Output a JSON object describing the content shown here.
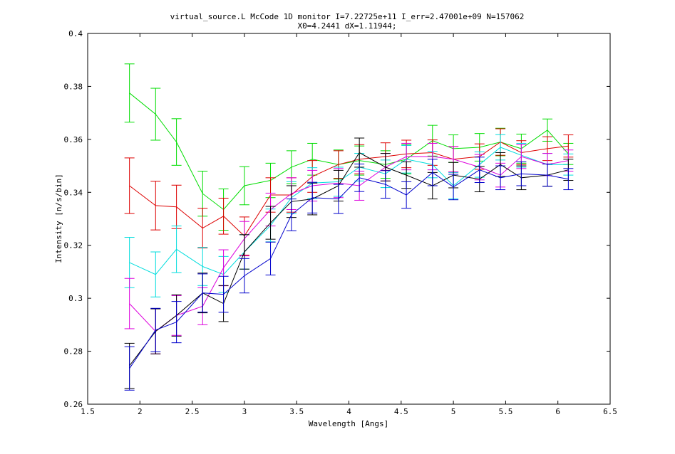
{
  "chart_data": {
    "type": "line",
    "title": "virtual_source.L McCode 1D monitor I=7.22725e+11 I_err=2.47001e+09 N=157062",
    "subtitle": "X0=4.2441 dX=1.11944;",
    "xlabel": "Wavelength [Angs]",
    "ylabel": "Intensity [n/s/bin]",
    "xlim": [
      1.5,
      6.5
    ],
    "ylim": [
      0.26,
      0.4
    ],
    "xticks": [
      1.5,
      2,
      2.5,
      3,
      3.5,
      4,
      4.5,
      5,
      5.5,
      6,
      6.5
    ],
    "xtick_labels": [
      "1.5",
      "2",
      "2.5",
      "3",
      "3.5",
      "4",
      "4.5",
      "5",
      "5.5",
      "6",
      "6.5"
    ],
    "yticks": [
      0.26,
      0.28,
      0.3,
      0.32,
      0.34,
      0.36,
      0.38,
      0.4
    ],
    "ytick_labels": [
      "0.26",
      "0.28",
      "0.3",
      "0.32",
      "0.34",
      "0.36",
      "0.38",
      "0.4"
    ],
    "grid": false,
    "legend": "none",
    "x": [
      1.9,
      2.15,
      2.35,
      2.6,
      2.8,
      3.0,
      3.25,
      3.45,
      3.65,
      3.9,
      4.1,
      4.35,
      4.55,
      4.8,
      5.0,
      5.25,
      5.45,
      5.65,
      5.9,
      6.1
    ],
    "series": [
      {
        "color": "#00dd00",
        "values": [
          0.3775,
          0.3695,
          0.359,
          0.3395,
          0.3335,
          0.3425,
          0.3445,
          0.3495,
          0.3525,
          0.3505,
          0.352,
          0.3505,
          0.3525,
          0.3595,
          0.3565,
          0.357,
          0.359,
          0.3565,
          0.3635,
          0.3545
        ],
        "errors": [
          0.011,
          0.0098,
          0.0088,
          0.0085,
          0.0078,
          0.0072,
          0.0065,
          0.0062,
          0.006,
          0.0055,
          0.0055,
          0.0052,
          0.0055,
          0.0058,
          0.0052,
          0.0052,
          0.0052,
          0.0055,
          0.0042,
          0.004
        ]
      },
      {
        "color": "#dd0000",
        "values": [
          0.3425,
          0.335,
          0.3345,
          0.3265,
          0.331,
          0.3235,
          0.339,
          0.339,
          0.346,
          0.3505,
          0.3525,
          0.3535,
          0.3545,
          0.355,
          0.3525,
          0.3535,
          0.359,
          0.355,
          0.3565,
          0.3575
        ],
        "errors": [
          0.0105,
          0.0092,
          0.0082,
          0.0075,
          0.0068,
          0.0072,
          0.0065,
          0.0065,
          0.006,
          0.0052,
          0.0055,
          0.0052,
          0.0052,
          0.0048,
          0.0048,
          0.0048,
          0.005,
          0.0045,
          0.0045,
          0.0042
        ]
      },
      {
        "color": "#00dddd",
        "values": [
          0.3135,
          0.309,
          0.3185,
          0.312,
          0.309,
          0.3175,
          0.3275,
          0.338,
          0.3435,
          0.344,
          0.3495,
          0.347,
          0.3525,
          0.3505,
          0.3425,
          0.3505,
          0.357,
          0.354,
          0.3505,
          0.3505
        ],
        "errors": [
          0.0095,
          0.0085,
          0.0088,
          0.0072,
          0.0068,
          0.0065,
          0.0062,
          0.006,
          0.0058,
          0.0055,
          0.0052,
          0.0052,
          0.0052,
          0.005,
          0.005,
          0.0048,
          0.0048,
          0.0045,
          0.0042,
          0.004
        ]
      },
      {
        "color": "#dd00dd",
        "values": [
          0.298,
          0.2875,
          0.2935,
          0.297,
          0.3115,
          0.3225,
          0.3335,
          0.3395,
          0.3425,
          0.3435,
          0.3425,
          0.3495,
          0.3535,
          0.3535,
          0.3525,
          0.3495,
          0.3465,
          0.3535,
          0.3505,
          0.352
        ],
        "errors": [
          0.0095,
          0.0085,
          0.0075,
          0.007,
          0.0068,
          0.0065,
          0.0062,
          0.006,
          0.0058,
          0.0055,
          0.0055,
          0.0052,
          0.005,
          0.005,
          0.0048,
          0.0048,
          0.0045,
          0.0045,
          0.0042,
          0.004
        ]
      },
      {
        "color": "#000000",
        "values": [
          0.2745,
          0.2875,
          0.2935,
          0.302,
          0.298,
          0.3175,
          0.3285,
          0.3365,
          0.3375,
          0.3425,
          0.355,
          0.3495,
          0.3465,
          0.3425,
          0.3465,
          0.345,
          0.3505,
          0.3455,
          0.3465,
          0.3485
        ],
        "errors": [
          0.0085,
          0.0085,
          0.0078,
          0.0075,
          0.0068,
          0.0065,
          0.0062,
          0.006,
          0.006,
          0.0058,
          0.0055,
          0.0052,
          0.005,
          0.005,
          0.0048,
          0.0048,
          0.0045,
          0.0045,
          0.0042,
          0.004
        ]
      },
      {
        "color": "#0000cc",
        "values": [
          0.2735,
          0.288,
          0.291,
          0.302,
          0.3015,
          0.3085,
          0.315,
          0.3315,
          0.338,
          0.3375,
          0.3455,
          0.343,
          0.339,
          0.3475,
          0.342,
          0.3485,
          0.3455,
          0.347,
          0.3465,
          0.345
        ],
        "errors": [
          0.0082,
          0.0082,
          0.0078,
          0.0072,
          0.0068,
          0.0065,
          0.0062,
          0.006,
          0.0058,
          0.0055,
          0.0052,
          0.0052,
          0.005,
          0.005,
          0.0048,
          0.0048,
          0.0045,
          0.0045,
          0.0042,
          0.004
        ]
      }
    ]
  }
}
